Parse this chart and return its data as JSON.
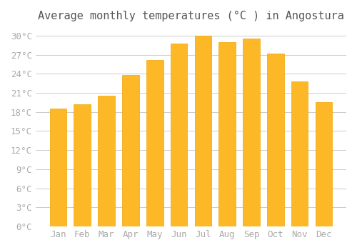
{
  "title": "Average monthly temperatures (°C ) in Angostura",
  "months": [
    "Jan",
    "Feb",
    "Mar",
    "Apr",
    "May",
    "Jun",
    "Jul",
    "Aug",
    "Sep",
    "Oct",
    "Nov",
    "Dec"
  ],
  "values": [
    18.5,
    19.2,
    20.5,
    23.8,
    26.2,
    28.8,
    30.0,
    29.0,
    29.5,
    27.2,
    22.8,
    19.5
  ],
  "bar_color_face": "#FDB827",
  "bar_color_edge": "#F0A500",
  "background_color": "#FFFFFF",
  "grid_color": "#CCCCCC",
  "ytick_step": 3,
  "ymax": 31,
  "ymin": 0,
  "title_fontsize": 11,
  "tick_fontsize": 9,
  "tick_color": "#AAAAAA",
  "font_family": "monospace"
}
